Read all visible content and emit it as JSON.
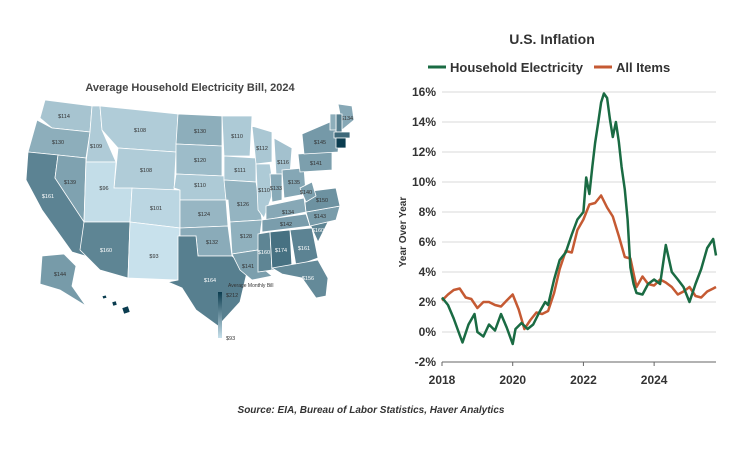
{
  "source": "Source: EIA, Bureau of Labor Statistics, Haver Analytics",
  "chart_data": [
    {
      "type": "choropleth-map",
      "title": "Average Household Electricity Bill, 2024",
      "legend": {
        "title": "Average Monthly Bill",
        "max_label": "$212",
        "min_label": "$93",
        "min": 93,
        "max": 212,
        "color_low": "#c8e1ec",
        "color_high": "#0b3d50"
      },
      "states": [
        {
          "id": "WA",
          "value": 114,
          "label": "$114"
        },
        {
          "id": "OR",
          "value": 130,
          "label": "$130"
        },
        {
          "id": "CA",
          "value": 161,
          "label": "$161"
        },
        {
          "id": "NV",
          "value": 139,
          "label": "$139"
        },
        {
          "id": "ID",
          "value": 109,
          "label": "$109"
        },
        {
          "id": "MT",
          "value": 108,
          "label": "$108"
        },
        {
          "id": "WY",
          "value": 108,
          "label": "$108"
        },
        {
          "id": "UT",
          "value": 96,
          "label": "$96"
        },
        {
          "id": "AZ",
          "value": 160,
          "label": "$160"
        },
        {
          "id": "CO",
          "value": 101,
          "label": "$101"
        },
        {
          "id": "NM",
          "value": 93,
          "label": "$93"
        },
        {
          "id": "ND",
          "value": 130,
          "label": "$130"
        },
        {
          "id": "SD",
          "value": 120,
          "label": "$120"
        },
        {
          "id": "NE",
          "value": 110,
          "label": "$110"
        },
        {
          "id": "KS",
          "value": 124,
          "label": "$124"
        },
        {
          "id": "OK",
          "value": 132,
          "label": "$132"
        },
        {
          "id": "TX",
          "value": 164,
          "label": "$164"
        },
        {
          "id": "MN",
          "value": 110,
          "label": "$110"
        },
        {
          "id": "IA",
          "value": 111,
          "label": "$111"
        },
        {
          "id": "MO",
          "value": 126,
          "label": "$126"
        },
        {
          "id": "AR",
          "value": 128,
          "label": "$128"
        },
        {
          "id": "LA",
          "value": 141,
          "label": "$141"
        },
        {
          "id": "WI",
          "value": 112,
          "label": "$112"
        },
        {
          "id": "IL",
          "value": 110,
          "label": "$110"
        },
        {
          "id": "MI",
          "value": 116,
          "label": "$116"
        },
        {
          "id": "IN",
          "value": 133,
          "label": "$133"
        },
        {
          "id": "OH",
          "value": 135,
          "label": "$135"
        },
        {
          "id": "KY",
          "value": 134,
          "label": "$134"
        },
        {
          "id": "TN",
          "value": 142,
          "label": "$142"
        },
        {
          "id": "MS",
          "value": 160,
          "label": "$160"
        },
        {
          "id": "AL",
          "value": 174,
          "label": "$174"
        },
        {
          "id": "GA",
          "value": 161,
          "label": "$161"
        },
        {
          "id": "FL",
          "value": 156,
          "label": "$156"
        },
        {
          "id": "SC",
          "value": 160,
          "label": "$160"
        },
        {
          "id": "NC",
          "value": 143,
          "label": "$143"
        },
        {
          "id": "VA",
          "value": 150,
          "label": "$150"
        },
        {
          "id": "WV",
          "value": 140,
          "label": "$140"
        },
        {
          "id": "PA",
          "value": 141,
          "label": "$141"
        },
        {
          "id": "NY",
          "value": 145,
          "label": "$145"
        },
        {
          "id": "ME",
          "value": 134,
          "label": "$134"
        },
        {
          "id": "NH",
          "value": 165,
          "label": ""
        },
        {
          "id": "VT",
          "value": 130,
          "label": ""
        },
        {
          "id": "MA",
          "value": 180,
          "label": ""
        },
        {
          "id": "CT",
          "value": 212,
          "label": ""
        },
        {
          "id": "AK",
          "value": 144,
          "label": "$144"
        },
        {
          "id": "HI",
          "value": 212,
          "label": ""
        }
      ]
    },
    {
      "type": "line",
      "title": "U.S. Inflation",
      "ylabel": "Year Over Year",
      "xlabel": "",
      "ylim": [
        -2,
        16
      ],
      "xlim": [
        2018.0,
        2025.75
      ],
      "yticks": [
        -2,
        0,
        2,
        4,
        6,
        8,
        10,
        12,
        14,
        16
      ],
      "ytick_labels": [
        "-2%",
        "0%",
        "2%",
        "4%",
        "6%",
        "8%",
        "10%",
        "12%",
        "14%",
        "16%"
      ],
      "xticks": [
        2018,
        2020,
        2022,
        2024
      ],
      "xtick_labels": [
        "2018",
        "2020",
        "2022",
        "2024"
      ],
      "grid": true,
      "legend": "top",
      "series": [
        {
          "name": "Household Electricity",
          "color": "#1a6b43",
          "x": [
            2018.0,
            2018.17,
            2018.33,
            2018.5,
            2018.58,
            2018.75,
            2018.92,
            2019.0,
            2019.17,
            2019.33,
            2019.5,
            2019.67,
            2019.83,
            2020.0,
            2020.08,
            2020.25,
            2020.42,
            2020.58,
            2020.75,
            2020.92,
            2021.0,
            2021.17,
            2021.33,
            2021.5,
            2021.67,
            2021.83,
            2022.0,
            2022.08,
            2022.17,
            2022.25,
            2022.33,
            2022.42,
            2022.5,
            2022.58,
            2022.67,
            2022.75,
            2022.83,
            2022.92,
            2023.0,
            2023.08,
            2023.17,
            2023.25,
            2023.33,
            2023.42,
            2023.5,
            2023.67,
            2023.83,
            2024.0,
            2024.17,
            2024.33,
            2024.5,
            2024.67,
            2024.83,
            2025.0,
            2025.17,
            2025.33,
            2025.5,
            2025.67,
            2025.75
          ],
          "values": [
            2.3,
            1.8,
            0.9,
            -0.2,
            -0.7,
            0.5,
            1.2,
            0.0,
            -0.3,
            0.5,
            0.1,
            1.2,
            0.3,
            -0.8,
            0.2,
            0.6,
            0.2,
            0.5,
            1.3,
            2.0,
            1.8,
            3.5,
            4.8,
            5.3,
            6.5,
            7.5,
            8.0,
            10.3,
            9.2,
            11.0,
            12.6,
            14.0,
            15.3,
            15.9,
            15.6,
            14.2,
            13.0,
            14.0,
            12.7,
            11.0,
            9.5,
            7.5,
            4.3,
            3.2,
            2.6,
            2.5,
            3.2,
            3.5,
            3.2,
            5.8,
            4.0,
            3.5,
            3.0,
            2.0,
            3.2,
            4.2,
            5.6,
            6.2,
            5.1
          ]
        },
        {
          "name": "All Items",
          "color": "#c55a33",
          "x": [
            2018.0,
            2018.17,
            2018.33,
            2018.5,
            2018.67,
            2018.83,
            2019.0,
            2019.17,
            2019.33,
            2019.5,
            2019.67,
            2019.83,
            2020.0,
            2020.17,
            2020.33,
            2020.5,
            2020.67,
            2020.83,
            2021.0,
            2021.17,
            2021.33,
            2021.5,
            2021.67,
            2021.83,
            2022.0,
            2022.17,
            2022.33,
            2022.5,
            2022.67,
            2022.83,
            2023.0,
            2023.17,
            2023.33,
            2023.5,
            2023.67,
            2023.83,
            2024.0,
            2024.17,
            2024.33,
            2024.5,
            2024.67,
            2024.83,
            2025.0,
            2025.17,
            2025.33,
            2025.5,
            2025.67,
            2025.75
          ],
          "values": [
            2.1,
            2.5,
            2.8,
            2.9,
            2.3,
            2.2,
            1.6,
            2.0,
            2.0,
            1.8,
            1.7,
            2.1,
            2.5,
            1.5,
            0.2,
            0.8,
            1.3,
            1.2,
            1.4,
            2.6,
            4.2,
            5.4,
            5.3,
            6.8,
            7.5,
            8.5,
            8.6,
            9.1,
            8.3,
            7.7,
            6.4,
            5.0,
            4.9,
            3.0,
            3.7,
            3.2,
            3.1,
            3.5,
            3.3,
            3.0,
            2.5,
            2.7,
            3.0,
            2.4,
            2.3,
            2.7,
            2.9,
            3.0
          ]
        }
      ]
    }
  ]
}
